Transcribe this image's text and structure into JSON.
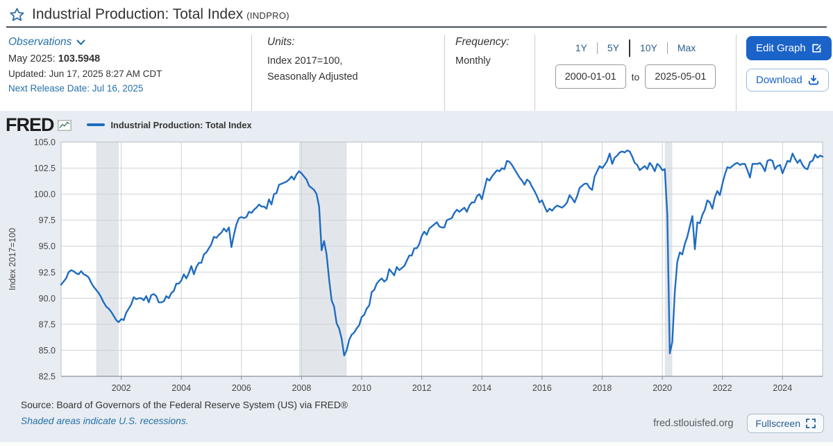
{
  "header": {
    "title": "Industrial Production: Total Index",
    "series_id": "(INDPRO)"
  },
  "meta": {
    "observations": {
      "label": "Observations",
      "latest_period": "May 2025:",
      "latest_value": "103.5948",
      "updated": "Updated: Jun 17, 2025 8:27 AM CDT",
      "next_release": "Next Release Date: Jul 16, 2025"
    },
    "units": {
      "label": "Units:",
      "line1": "Index 2017=100,",
      "line2": "Seasonally Adjusted"
    },
    "frequency": {
      "label": "Frequency:",
      "value": "Monthly"
    },
    "range": {
      "presets": [
        "1Y",
        "5Y",
        "10Y",
        "Max"
      ],
      "start_date": "2000-01-01",
      "to_label": "to",
      "end_date": "2025-05-01"
    },
    "actions": {
      "edit_graph": "Edit Graph",
      "download": "Download"
    }
  },
  "chart_header": {
    "logo": "FRED",
    "legend_label": "Industrial Production: Total Index"
  },
  "panel_footer": {
    "source": "Source: Board of Governors of the Federal Reserve System (US) via FRED®",
    "shaded_note": "Shaded areas indicate U.S. recessions.",
    "site": "fred.stlouisfed.org",
    "fullscreen": "Fullscreen"
  },
  "colors": {
    "line": "#1f6cc0",
    "panel_bg": "#e8edf3",
    "plot_bg": "#ffffff",
    "recession_band": "#e2e6ea",
    "gridline": "#cdd1d5",
    "axis": "#8a9096",
    "accent_blue": "#1a63c9",
    "link_blue": "#2470a8"
  },
  "chart_data": {
    "type": "line",
    "title": "Industrial Production: Total Index",
    "xlabel": "",
    "ylabel": "Index 2017=100",
    "ylim": [
      82.5,
      105.0
    ],
    "y_ticks": [
      82.5,
      85.0,
      87.5,
      90.0,
      92.5,
      95.0,
      97.5,
      100.0,
      102.5,
      105.0
    ],
    "x_start": "2000-01",
    "x_end": "2025-05",
    "x_tick_years": [
      2002,
      2004,
      2006,
      2008,
      2010,
      2012,
      2014,
      2016,
      2018,
      2020,
      2022,
      2024
    ],
    "grid": true,
    "legend_position": "top-left",
    "recessions": [
      [
        "2001-03",
        "2001-11"
      ],
      [
        "2007-12",
        "2009-06"
      ],
      [
        "2020-02",
        "2020-04"
      ]
    ],
    "series": [
      {
        "name": "Industrial Production: Total Index",
        "frequency": "monthly",
        "values": [
          91.3,
          91.6,
          91.9,
          92.5,
          92.7,
          92.6,
          92.4,
          92.3,
          92.6,
          92.3,
          92.2,
          92.0,
          91.5,
          91.1,
          90.8,
          90.5,
          90.1,
          89.6,
          89.2,
          89.0,
          88.7,
          88.3,
          87.9,
          87.7,
          88.0,
          87.9,
          88.6,
          89.0,
          89.4,
          90.1,
          89.9,
          90.0,
          90.0,
          89.8,
          90.2,
          89.6,
          90.3,
          90.4,
          90.2,
          89.6,
          89.6,
          89.7,
          90.2,
          90.0,
          90.5,
          90.7,
          91.4,
          91.4,
          91.7,
          92.3,
          91.9,
          92.4,
          93.1,
          92.3,
          93.0,
          93.4,
          93.4,
          94.2,
          94.4,
          94.8,
          95.2,
          95.9,
          95.8,
          96.1,
          96.3,
          96.7,
          96.4,
          96.8,
          94.9,
          96.1,
          97.1,
          97.7,
          97.8,
          97.7,
          97.8,
          98.3,
          98.2,
          98.5,
          98.7,
          99.0,
          98.8,
          98.8,
          98.6,
          99.5,
          99.0,
          100.0,
          100.1,
          100.9,
          101.0,
          101.1,
          101.2,
          101.4,
          101.7,
          101.4,
          101.9,
          102.2,
          102.0,
          101.7,
          101.4,
          100.8,
          100.6,
          100.4,
          100.0,
          98.8,
          94.6,
          95.5,
          94.2,
          91.8,
          89.8,
          89.2,
          87.6,
          87.1,
          86.1,
          84.5,
          85.0,
          86.0,
          86.5,
          86.7,
          87.1,
          87.4,
          88.2,
          88.4,
          89.0,
          89.3,
          90.6,
          90.8,
          91.4,
          91.7,
          91.9,
          91.6,
          91.8,
          92.8,
          92.5,
          92.2,
          93.0,
          92.7,
          92.9,
          93.1,
          93.6,
          94.1,
          94.1,
          94.8,
          94.8,
          95.2,
          96.0,
          96.4,
          96.1,
          96.7,
          96.9,
          97.1,
          97.3,
          96.9,
          96.8,
          96.8,
          97.5,
          97.6,
          97.7,
          98.2,
          98.5,
          98.3,
          98.5,
          98.7,
          98.3,
          98.9,
          99.2,
          99.2,
          99.8,
          100.0,
          99.5,
          100.5,
          101.5,
          101.3,
          101.7,
          102.0,
          102.3,
          102.2,
          102.5,
          102.4,
          103.2,
          103.1,
          102.8,
          102.4,
          102.0,
          101.6,
          101.3,
          100.9,
          101.4,
          101.2,
          100.7,
          100.3,
          99.8,
          99.2,
          99.4,
          98.8,
          98.3,
          98.6,
          98.4,
          98.7,
          98.9,
          98.8,
          98.7,
          98.9,
          99.2,
          99.9,
          99.6,
          99.2,
          99.8,
          100.6,
          100.8,
          101.0,
          101.0,
          100.6,
          100.4,
          101.7,
          102.2,
          102.7,
          102.5,
          102.8,
          103.2,
          103.9,
          102.9,
          103.5,
          103.7,
          104.0,
          104.1,
          104.0,
          104.2,
          104.1,
          103.6,
          103.0,
          102.8,
          102.3,
          102.5,
          102.7,
          102.4,
          103.0,
          102.7,
          102.2,
          102.9,
          102.7,
          102.3,
          102.4,
          98.0,
          84.7,
          85.8,
          90.6,
          93.5,
          94.4,
          94.2,
          95.2,
          95.9,
          96.9,
          97.9,
          94.7,
          97.3,
          97.2,
          98.0,
          98.5,
          99.4,
          99.2,
          98.6,
          99.7,
          100.3,
          99.9,
          101.0,
          101.9,
          102.6,
          102.5,
          102.7,
          102.9,
          103.0,
          102.8,
          102.9,
          102.9,
          102.3,
          101.6,
          102.9,
          102.9,
          102.9,
          103.0,
          102.7,
          102.2,
          103.2,
          103.3,
          103.2,
          102.4,
          102.7,
          102.8,
          102.0,
          102.6,
          103.2,
          103.1,
          103.9,
          103.4,
          103.0,
          103.3,
          102.8,
          102.5,
          102.4,
          103.1,
          103.2,
          103.8,
          103.5,
          103.7,
          103.5948
        ]
      }
    ]
  }
}
